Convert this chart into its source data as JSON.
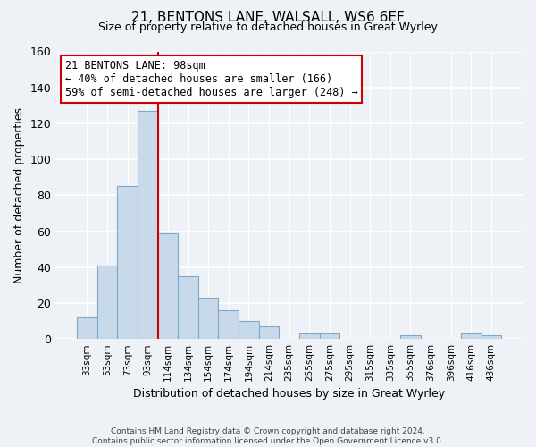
{
  "title": "21, BENTONS LANE, WALSALL, WS6 6EF",
  "subtitle": "Size of property relative to detached houses in Great Wyrley",
  "xlabel": "Distribution of detached houses by size in Great Wyrley",
  "ylabel": "Number of detached properties",
  "bar_labels": [
    "33sqm",
    "53sqm",
    "73sqm",
    "93sqm",
    "114sqm",
    "134sqm",
    "154sqm",
    "174sqm",
    "194sqm",
    "214sqm",
    "235sqm",
    "255sqm",
    "275sqm",
    "295sqm",
    "315sqm",
    "335sqm",
    "355sqm",
    "376sqm",
    "396sqm",
    "416sqm",
    "436sqm"
  ],
  "bar_values": [
    12,
    41,
    85,
    127,
    59,
    35,
    23,
    16,
    10,
    7,
    0,
    3,
    3,
    0,
    0,
    0,
    2,
    0,
    0,
    3,
    2
  ],
  "bar_color": "#c8daea",
  "bar_edgecolor": "#7aaac8",
  "ylim": [
    0,
    160
  ],
  "yticks": [
    0,
    20,
    40,
    60,
    80,
    100,
    120,
    140,
    160
  ],
  "vline_color": "#cc0000",
  "annotation_title": "21 BENTONS LANE: 98sqm",
  "annotation_line1": "← 40% of detached houses are smaller (166)",
  "annotation_line2": "59% of semi-detached houses are larger (248) →",
  "annotation_box_color": "#ffffff",
  "annotation_box_edgecolor": "#cc0000",
  "footer_line1": "Contains HM Land Registry data © Crown copyright and database right 2024.",
  "footer_line2": "Contains public sector information licensed under the Open Government Licence v3.0.",
  "bg_color": "#eef2f7"
}
